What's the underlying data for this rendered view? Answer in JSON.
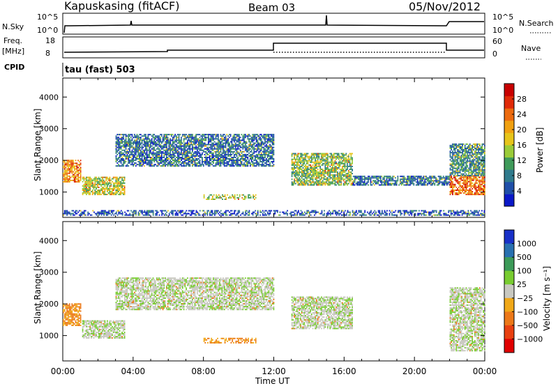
{
  "header": {
    "title": "Kapuskasing (fitACF)",
    "beam": "Beam 03",
    "date": "05/Nov/2012"
  },
  "strips": {
    "nsky_label": "N.Sky",
    "nsky_ticks": [
      "10^5",
      "10^0"
    ],
    "nsearch_label": "N.Search",
    "nsearch_ticks": [
      "10^5",
      "10^0"
    ],
    "freq_label_1": "Freq.",
    "freq_label_2": "[MHz]",
    "freq_ticks": [
      "18",
      "8"
    ],
    "nave_label": "Nave",
    "nave_ticks": [
      "60",
      "0"
    ],
    "cpid_label": "CPID",
    "cpid_text": "tau (fast) 503"
  },
  "chart_data": [
    {
      "type": "heatmap",
      "panel": "power",
      "ylabel": "Slant Range [km]",
      "ylim": [
        200,
        4600
      ],
      "yticks": [
        "1000",
        "2000",
        "3000",
        "4000"
      ],
      "xlim_hours": [
        0,
        24
      ],
      "xticks": [
        "00:00",
        "04:00",
        "08:00",
        "12:00",
        "16:00",
        "20:00",
        "00:00"
      ],
      "colorbar": {
        "label": "Power [dB]",
        "ticks": [
          "4",
          "8",
          "12",
          "16",
          "20",
          "24",
          "28"
        ],
        "colors": [
          "#0a18c8",
          "#1f4fa8",
          "#2f7a8c",
          "#3f9a5a",
          "#9acb38",
          "#e6c41a",
          "#f0a010",
          "#ec6a0e",
          "#e02a08",
          "#c80000"
        ]
      },
      "echo_regions": [
        {
          "t": [
            0.0,
            1.0
          ],
          "range": [
            1300,
            2000
          ],
          "power": 20
        },
        {
          "t": [
            1.1,
            3.5
          ],
          "range": [
            900,
            1450
          ],
          "power": 14
        },
        {
          "t": [
            3.0,
            12.0
          ],
          "range": [
            1800,
            2800
          ],
          "power": 6
        },
        {
          "t": [
            8.0,
            11.0
          ],
          "range": [
            750,
            900
          ],
          "power": 14
        },
        {
          "t": [
            13.0,
            16.5
          ],
          "range": [
            1200,
            2200
          ],
          "power": 12
        },
        {
          "t": [
            16.5,
            22.0
          ],
          "range": [
            1200,
            1500
          ],
          "power": 6
        },
        {
          "t": [
            22.0,
            24.0
          ],
          "range": [
            900,
            1500
          ],
          "power": 22
        },
        {
          "t": [
            22.0,
            24.0
          ],
          "range": [
            1500,
            2500
          ],
          "power": 8
        },
        {
          "t": [
            0.0,
            24.0
          ],
          "range": [
            250,
            400
          ],
          "power": 4
        }
      ]
    },
    {
      "type": "heatmap",
      "panel": "velocity",
      "ylabel": "Slant Range [km]",
      "ylim": [
        200,
        4600
      ],
      "yticks": [
        "1000",
        "2000",
        "3000",
        "4000"
      ],
      "xlim_hours": [
        0,
        24
      ],
      "xticks": [
        "00:00",
        "04:00",
        "08:00",
        "12:00",
        "16:00",
        "20:00",
        "00:00"
      ],
      "xlabel": "Time UT",
      "colorbar": {
        "label": "Velocity [m s⁻¹]",
        "ticks": [
          "1000",
          "500",
          "100",
          "25",
          "−25",
          "−100",
          "−500",
          "−1000"
        ],
        "colors": [
          "#1830c8",
          "#2870b0",
          "#3c9a58",
          "#78cc30",
          "#c8c8c0",
          "#f0a818",
          "#ec7818",
          "#e84010",
          "#e00000"
        ]
      },
      "echo_regions": [
        {
          "t": [
            0.0,
            1.0
          ],
          "range": [
            1300,
            2000
          ],
          "velocity": -100
        },
        {
          "t": [
            1.1,
            3.5
          ],
          "range": [
            900,
            1450
          ],
          "velocity": 0
        },
        {
          "t": [
            3.0,
            12.0
          ],
          "range": [
            1800,
            2800
          ],
          "velocity": 0
        },
        {
          "t": [
            8.0,
            11.0
          ],
          "range": [
            750,
            900
          ],
          "velocity": -100
        },
        {
          "t": [
            13.0,
            16.5
          ],
          "range": [
            1200,
            2200
          ],
          "velocity": 0
        },
        {
          "t": [
            22.0,
            24.0
          ],
          "range": [
            500,
            2500
          ],
          "velocity": 0
        }
      ]
    }
  ]
}
